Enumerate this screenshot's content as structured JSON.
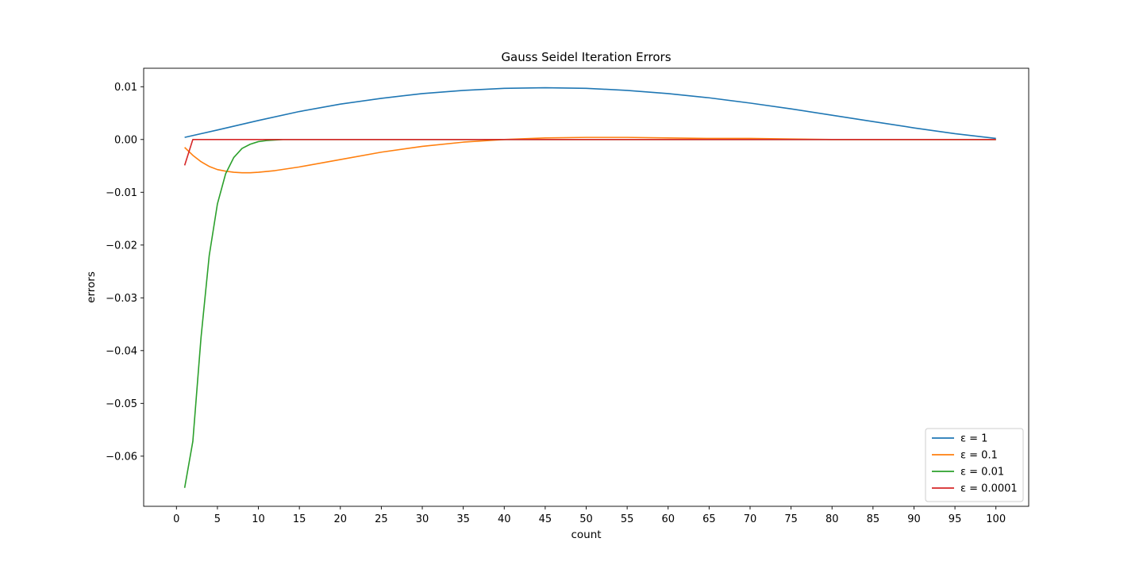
{
  "chart_data": {
    "type": "line",
    "title": "Gauss Seidel Iteration Errors",
    "xlabel": "count",
    "ylabel": "errors",
    "xlim": [
      -4,
      104
    ],
    "ylim": [
      -0.0695,
      0.0135
    ],
    "xticks": [
      0,
      5,
      10,
      15,
      20,
      25,
      30,
      35,
      40,
      45,
      50,
      55,
      60,
      65,
      70,
      75,
      80,
      85,
      90,
      95,
      100
    ],
    "yticks": [
      0.01,
      0.0,
      -0.01,
      -0.02,
      -0.03,
      -0.04,
      -0.05,
      -0.06
    ],
    "ytick_labels": [
      "0.01",
      "0.00",
      "−0.01",
      "−0.02",
      "−0.03",
      "−0.04",
      "−0.05",
      "−0.06"
    ],
    "grid": false,
    "legend_position": "lower right",
    "series": [
      {
        "name": "ε = 1",
        "color": "#1f77b4",
        "x": [
          1,
          5,
          10,
          15,
          20,
          25,
          30,
          35,
          40,
          45,
          50,
          55,
          60,
          65,
          70,
          75,
          80,
          85,
          90,
          95,
          100
        ],
        "values": [
          0.0004,
          0.0018,
          0.0036,
          0.0053,
          0.0067,
          0.0078,
          0.0087,
          0.0093,
          0.0097,
          0.0098,
          0.0097,
          0.0093,
          0.0087,
          0.0079,
          0.0069,
          0.0058,
          0.0046,
          0.0034,
          0.0022,
          0.0011,
          0.0002
        ]
      },
      {
        "name": "ε = 0.1",
        "color": "#ff7f0e",
        "x": [
          1,
          2,
          3,
          4,
          5,
          6,
          7,
          8,
          9,
          10,
          12,
          15,
          20,
          25,
          30,
          35,
          40,
          45,
          50,
          55,
          60,
          65,
          70,
          75,
          80,
          85,
          90,
          95,
          100
        ],
        "values": [
          -0.0015,
          -0.003,
          -0.0042,
          -0.0051,
          -0.0057,
          -0.006,
          -0.0062,
          -0.0063,
          -0.0063,
          -0.0062,
          -0.0059,
          -0.0052,
          -0.0038,
          -0.0024,
          -0.0013,
          -0.0005,
          0.0,
          0.0003,
          0.0004,
          0.0004,
          0.0003,
          0.0002,
          0.0002,
          0.0001,
          0.0,
          0.0,
          0.0,
          0.0,
          0.0
        ]
      },
      {
        "name": "ε = 0.01",
        "color": "#2ca02c",
        "x": [
          1,
          2,
          3,
          4,
          5,
          6,
          7,
          8,
          9,
          10,
          11,
          12,
          13,
          15,
          20,
          30,
          40,
          50,
          60,
          70,
          80,
          90,
          100
        ],
        "values": [
          -0.066,
          -0.0572,
          -0.0375,
          -0.022,
          -0.0122,
          -0.0065,
          -0.0034,
          -0.0017,
          -0.0009,
          -0.0004,
          -0.0002,
          -0.0001,
          0.0,
          0.0,
          0.0,
          0.0,
          0.0,
          0.0,
          0.0,
          0.0,
          0.0,
          0.0,
          0.0
        ]
      },
      {
        "name": "ε = 0.0001",
        "color": "#d62728",
        "x": [
          1,
          2,
          10,
          20,
          30,
          40,
          50,
          60,
          70,
          80,
          90,
          100
        ],
        "values": [
          -0.0049,
          0.0,
          0.0,
          0.0,
          0.0,
          0.0,
          0.0,
          0.0,
          0.0,
          0.0,
          0.0,
          0.0
        ]
      }
    ]
  }
}
